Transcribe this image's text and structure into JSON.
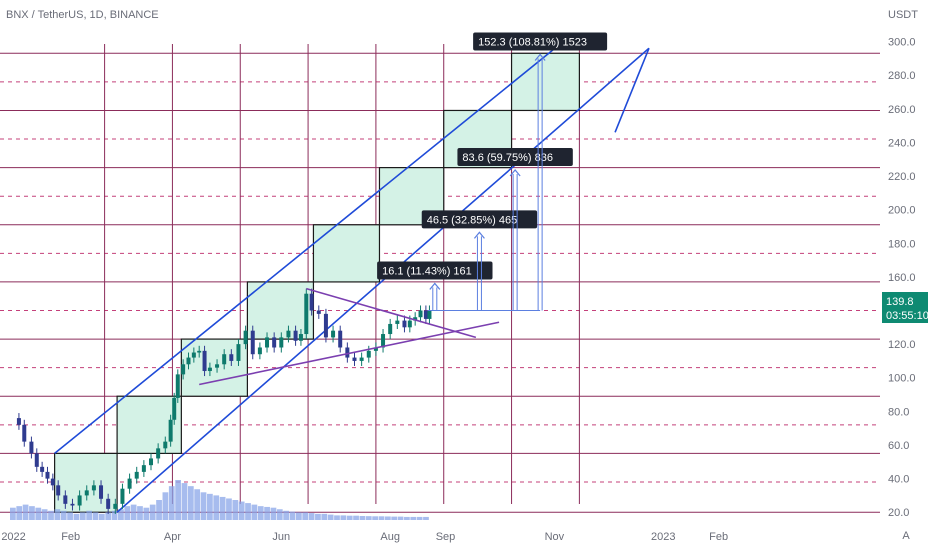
{
  "header": {
    "symbol_title": "BNX / TetherUS, 1D, BINANCE"
  },
  "price_axis": {
    "unit": "USDT",
    "ticks": [
      "300.0",
      "280.0",
      "260.0",
      "240.0",
      "220.0",
      "200.0",
      "180.0",
      "160.0",
      "140.0",
      "120.0",
      "100.0",
      "80.0",
      "60.0",
      "40.0",
      "20.0"
    ]
  },
  "time_axis": {
    "labels": [
      "2022",
      "Feb",
      "Apr",
      "Jun",
      "Aug",
      "Sep",
      "Nov",
      "2023",
      "Feb"
    ]
  },
  "current_price": {
    "price": "139.8",
    "countdown": "03:55:10"
  },
  "corner_badge": "A",
  "colors": {
    "grid_solid": "#8b2c5a",
    "grid_dashed": "#c4407a",
    "channel": "#1f4bd8",
    "box_fill": "#d4f2e6",
    "box_stroke": "#1a1a1a",
    "trend": "#7b3fb0",
    "up_candle": "#0e7a6c",
    "down_candle": "#2f3b8f",
    "volume": "#8aa6e8",
    "arrow": "#5b7fe0",
    "label_bg": "#1f2430",
    "price_tag": "#0e8a72"
  },
  "chart_data": {
    "type": "candlestick",
    "title": "BNX / TetherUS, 1D, BINANCE",
    "y_unit": "USDT",
    "ylim": [
      13,
      314
    ],
    "xlim": [
      "2021-12-31",
      "2023-02-28"
    ],
    "price_levels_major": [
      20,
      55,
      89,
      123,
      157,
      191,
      225,
      259,
      293
    ],
    "price_levels_minor": [
      38,
      72,
      106,
      140,
      174,
      208,
      242,
      276
    ],
    "grid_verticals": [
      "2022-02-22",
      "2022-04-01",
      "2022-05-09",
      "2022-06-16",
      "2022-07-24",
      "2022-08-31",
      "2022-10-08",
      "2022-11-15"
    ],
    "price_series": {
      "dates": [
        "2021-12-31",
        "2022-01-05",
        "2022-01-08",
        "2022-01-12",
        "2022-01-15",
        "2022-01-18",
        "2022-01-21",
        "2022-01-24",
        "2022-01-27",
        "2022-01-31",
        "2022-02-04",
        "2022-02-08",
        "2022-02-12",
        "2022-02-16",
        "2022-02-20",
        "2022-02-24",
        "2022-02-28",
        "2022-03-04",
        "2022-03-08",
        "2022-03-12",
        "2022-03-16",
        "2022-03-20",
        "2022-03-24",
        "2022-03-28",
        "2022-03-31",
        "2022-04-02",
        "2022-04-04",
        "2022-04-07",
        "2022-04-10",
        "2022-04-13",
        "2022-04-16",
        "2022-04-19",
        "2022-04-22",
        "2022-04-26",
        "2022-04-30",
        "2022-05-04",
        "2022-05-08",
        "2022-05-12",
        "2022-05-16",
        "2022-05-20",
        "2022-05-24",
        "2022-05-28",
        "2022-06-01",
        "2022-06-05",
        "2022-06-09",
        "2022-06-12",
        "2022-06-15",
        "2022-06-18",
        "2022-06-22",
        "2022-06-26",
        "2022-06-30",
        "2022-07-04",
        "2022-07-08",
        "2022-07-12",
        "2022-07-16",
        "2022-07-20",
        "2022-07-24",
        "2022-07-28",
        "2022-08-01",
        "2022-08-05",
        "2022-08-09",
        "2022-08-12",
        "2022-08-15",
        "2022-08-18",
        "2022-08-21",
        "2022-08-23"
      ],
      "values": [
        76,
        72,
        62,
        55,
        47,
        44,
        40,
        36,
        30,
        25,
        24,
        30,
        33,
        36,
        28,
        22,
        25,
        34,
        40,
        44,
        48,
        52,
        58,
        62,
        75,
        88,
        102,
        108,
        112,
        115,
        116,
        104,
        106,
        108,
        114,
        110,
        120,
        128,
        114,
        118,
        124,
        118,
        124,
        128,
        122,
        126,
        150,
        140,
        138,
        124,
        128,
        118,
        112,
        110,
        112,
        116,
        118,
        126,
        132,
        134,
        130,
        134,
        136,
        140,
        135,
        140
      ]
    },
    "volume": {
      "unit": "",
      "x_start": "2021-12-31",
      "x_end": "2022-08-23",
      "values": [
        0.8,
        0.9,
        1,
        0.9,
        0.8,
        0.7,
        0.6,
        0.7,
        0.6,
        0.5,
        0.4,
        0.5,
        0.6,
        0.5,
        0.4,
        0.5,
        0.6,
        0.7,
        0.9,
        1.0,
        0.9,
        0.8,
        1.0,
        1.3,
        1.8,
        2.2,
        2.6,
        2.4,
        2.2,
        2.0,
        1.8,
        1.7,
        1.6,
        1.5,
        1.4,
        1.3,
        1.2,
        1.1,
        1.0,
        0.9,
        0.85,
        0.8,
        0.7,
        0.6,
        0.55,
        0.5,
        0.5,
        0.45,
        0.4,
        0.4,
        0.35,
        0.3,
        0.3,
        0.28,
        0.28,
        0.26,
        0.25,
        0.24,
        0.24,
        0.23,
        0.22,
        0.22,
        0.2,
        0.2,
        0.2,
        0.2
      ]
    },
    "channel": [
      {
        "name": "upper",
        "from": {
          "date": "2022-01-25",
          "price": 55
        },
        "to": {
          "date": "2022-11-06",
          "price": 300
        }
      },
      {
        "name": "lower",
        "from": {
          "date": "2022-03-01",
          "price": 20
        },
        "to": {
          "date": "2022-12-24",
          "price": 296
        }
      },
      {
        "name": "lower-extension",
        "from": {
          "date": "2022-12-05",
          "price": 246
        },
        "to": {
          "date": "2022-12-24",
          "price": 296
        }
      }
    ],
    "boxes": [
      {
        "from": "2022-01-25",
        "to": "2022-03-01",
        "low": 20,
        "high": 55
      },
      {
        "from": "2022-03-01",
        "to": "2022-04-06",
        "low": 55,
        "high": 89
      },
      {
        "from": "2022-04-06",
        "to": "2022-05-13",
        "low": 89,
        "high": 123
      },
      {
        "from": "2022-05-13",
        "to": "2022-06-19",
        "low": 123,
        "high": 157
      },
      {
        "from": "2022-06-19",
        "to": "2022-07-26",
        "low": 157,
        "high": 191
      },
      {
        "from": "2022-07-26",
        "to": "2022-08-31",
        "low": 191,
        "high": 225
      },
      {
        "from": "2022-08-31",
        "to": "2022-10-08",
        "low": 225,
        "high": 259
      },
      {
        "from": "2022-10-08",
        "to": "2022-11-15",
        "low": 259,
        "high": 293
      }
    ],
    "trend_lines": [
      {
        "name": "upper-trend",
        "from": {
          "date": "2022-06-15",
          "price": 153
        },
        "to": {
          "date": "2022-09-18",
          "price": 124
        }
      },
      {
        "name": "lower-trend",
        "from": {
          "date": "2022-04-16",
          "price": 96
        },
        "to": {
          "date": "2022-10-01",
          "price": 133
        }
      }
    ],
    "baseline": {
      "price": 140,
      "from": "2022-08-22",
      "to": "2022-10-24"
    },
    "projections": [
      {
        "date": "2022-08-26",
        "target": 156.1,
        "label": "16.1 (11.43%) 161"
      },
      {
        "date": "2022-09-20",
        "target": 186.5,
        "label": "46.5 (32.85%) 465"
      },
      {
        "date": "2022-10-10",
        "target": 223.6,
        "label": "83.6 (59.75%) 836"
      },
      {
        "date": "2022-10-24",
        "target": 292.3,
        "label": "152.3 (108.81%) 1523"
      }
    ],
    "grid": true,
    "legend": "none"
  }
}
